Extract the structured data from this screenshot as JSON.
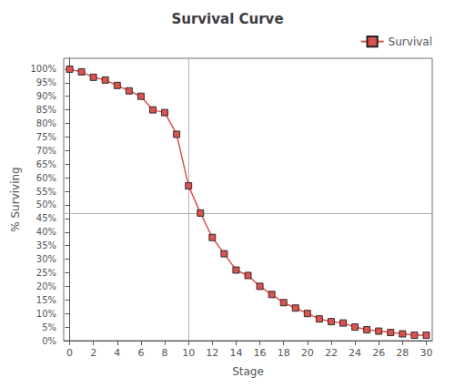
{
  "chart_data": {
    "type": "line",
    "title": "Survival Curve",
    "x_label": "Stage",
    "y_label": "% Surviving",
    "x": [
      0,
      1,
      2,
      3,
      4,
      5,
      6,
      7,
      8,
      9,
      10,
      11,
      12,
      13,
      14,
      15,
      16,
      17,
      18,
      19,
      20,
      21,
      22,
      23,
      24,
      25,
      26,
      27,
      28,
      29,
      30
    ],
    "series": [
      {
        "name": "Survival",
        "color": "#d9534f",
        "marker": "square",
        "values": [
          1.0,
          0.99,
          0.97,
          0.96,
          0.94,
          0.92,
          0.9,
          0.85,
          0.84,
          0.76,
          0.57,
          0.47,
          0.38,
          0.32,
          0.26,
          0.24,
          0.2,
          0.17,
          0.14,
          0.12,
          0.1,
          0.08,
          0.07,
          0.065,
          0.05,
          0.04,
          0.035,
          0.03,
          0.025,
          0.02,
          0.02
        ]
      }
    ],
    "reference_lines": [
      {
        "axis": "x",
        "value": 10,
        "color": "#b0b0b0"
      },
      {
        "axis": "y",
        "value": 0.47,
        "color": "#b0b0b0"
      }
    ],
    "xlim": [
      -0.5,
      30.5
    ],
    "xticks": [
      0,
      2,
      4,
      6,
      8,
      10,
      12,
      14,
      16,
      18,
      20,
      22,
      24,
      26,
      28,
      30
    ],
    "ylim": [
      0.0,
      1.04
    ],
    "yticks": [
      {
        "value": 0.0,
        "label": "0%"
      },
      {
        "value": 0.05,
        "label": "5%"
      },
      {
        "value": 0.1,
        "label": "10%"
      },
      {
        "value": 0.15,
        "label": "15%"
      },
      {
        "value": 0.2,
        "label": "20%"
      },
      {
        "value": 0.25,
        "label": "25%"
      },
      {
        "value": 0.3,
        "label": "30%"
      },
      {
        "value": 0.35,
        "label": "35%"
      },
      {
        "value": 0.4,
        "label": "40%"
      },
      {
        "value": 0.45,
        "label": "45%"
      },
      {
        "value": 0.5,
        "label": "50%"
      },
      {
        "value": 0.55,
        "label": "55%"
      },
      {
        "value": 0.6,
        "label": "60%"
      },
      {
        "value": 0.65,
        "label": "65%"
      },
      {
        "value": 0.7,
        "label": "70%"
      },
      {
        "value": 0.75,
        "label": "75%"
      },
      {
        "value": 0.8,
        "label": "80%"
      },
      {
        "value": 0.85,
        "label": "85%"
      },
      {
        "value": 0.9,
        "label": "90%"
      },
      {
        "value": 0.95,
        "label": "95%"
      },
      {
        "value": 1.0,
        "label": "100%"
      }
    ],
    "grid": false,
    "legend": "upper right"
  }
}
